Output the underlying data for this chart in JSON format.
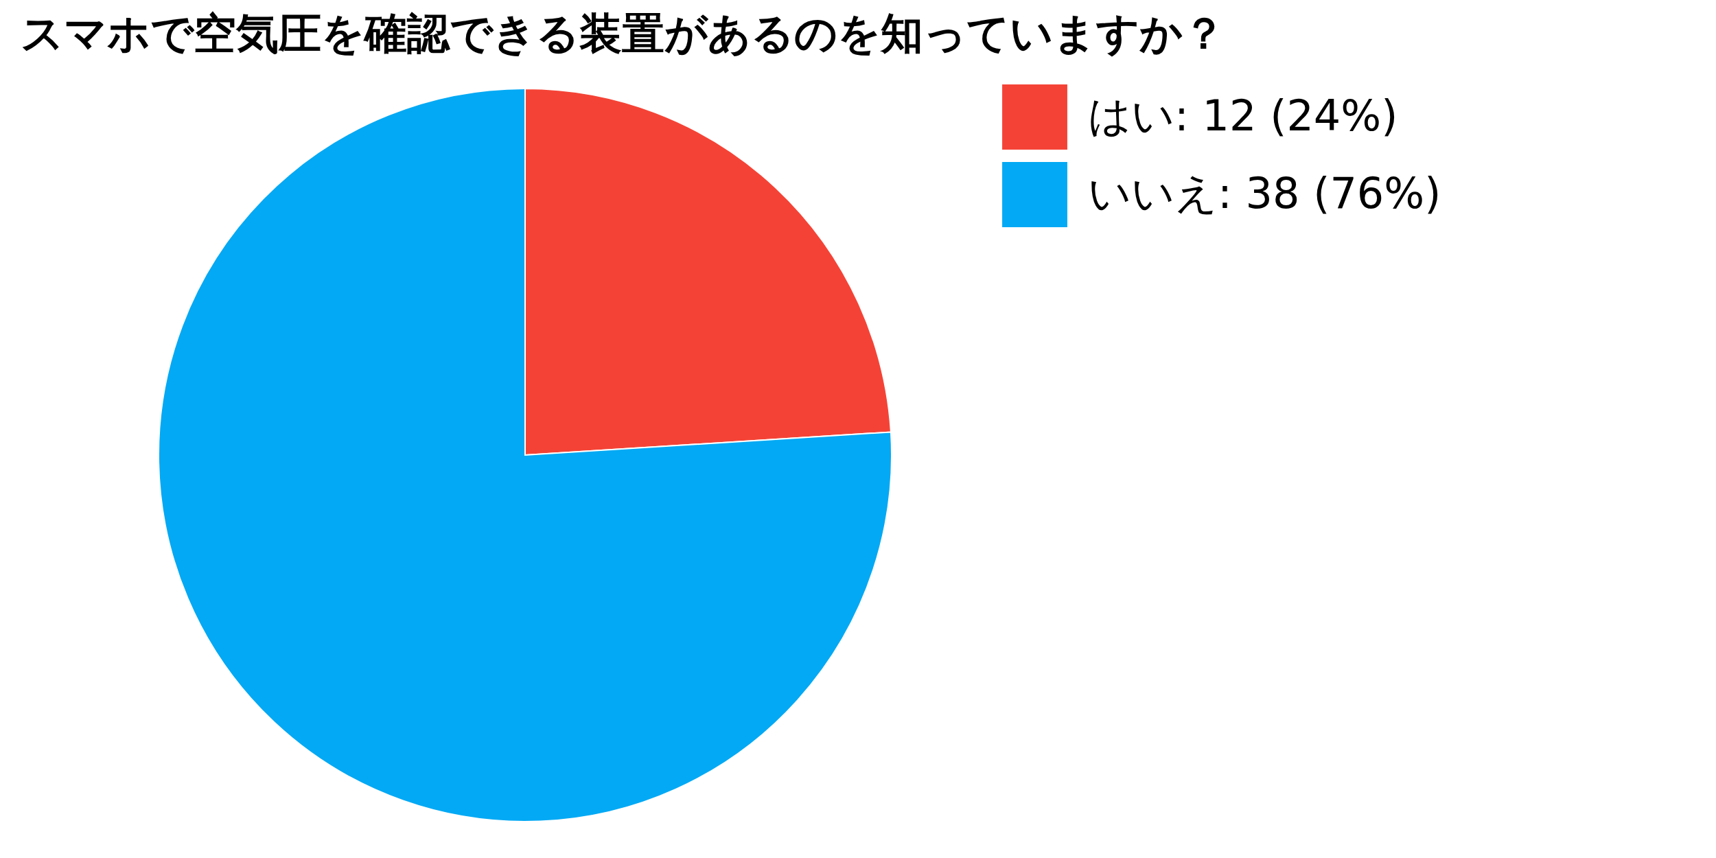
{
  "chart_data": {
    "type": "pie",
    "title": "スマホで空気圧を確認できる装置があるのを知っていますか？",
    "categories": [
      "はい: 12 (24%)",
      "いいえ: 38 (76%)"
    ],
    "values": [
      12,
      38
    ],
    "colors": [
      "#f44336",
      "#03a9f4"
    ],
    "legend": "top right"
  }
}
